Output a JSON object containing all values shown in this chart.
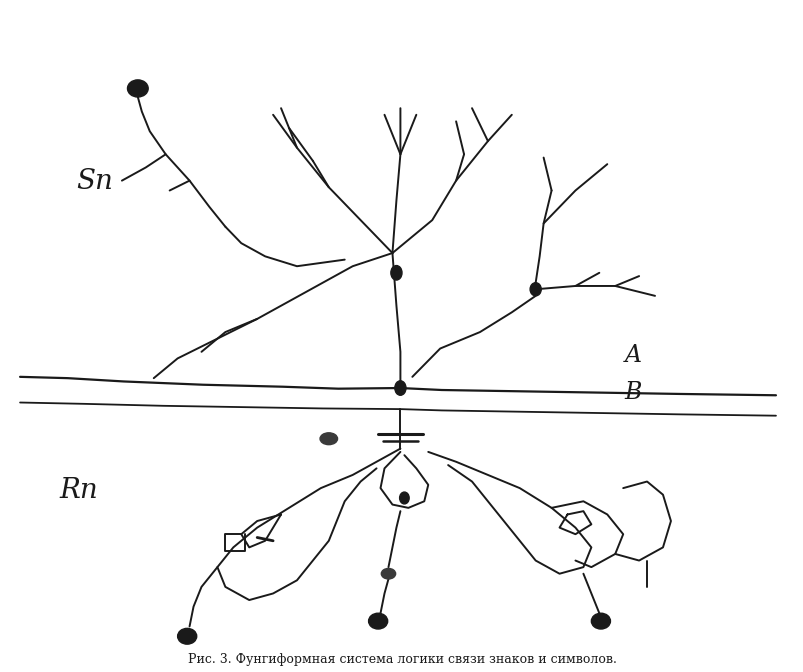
{
  "bg_color": "#ffffff",
  "line_color": "#1a1a1a",
  "lw": 1.4,
  "title": "Рис. 3. Фунгиформная система логики связи знаков и символов.",
  "label_Sn": "Sn",
  "label_A": "A",
  "label_B": "B",
  "label_Rn": "Rn"
}
